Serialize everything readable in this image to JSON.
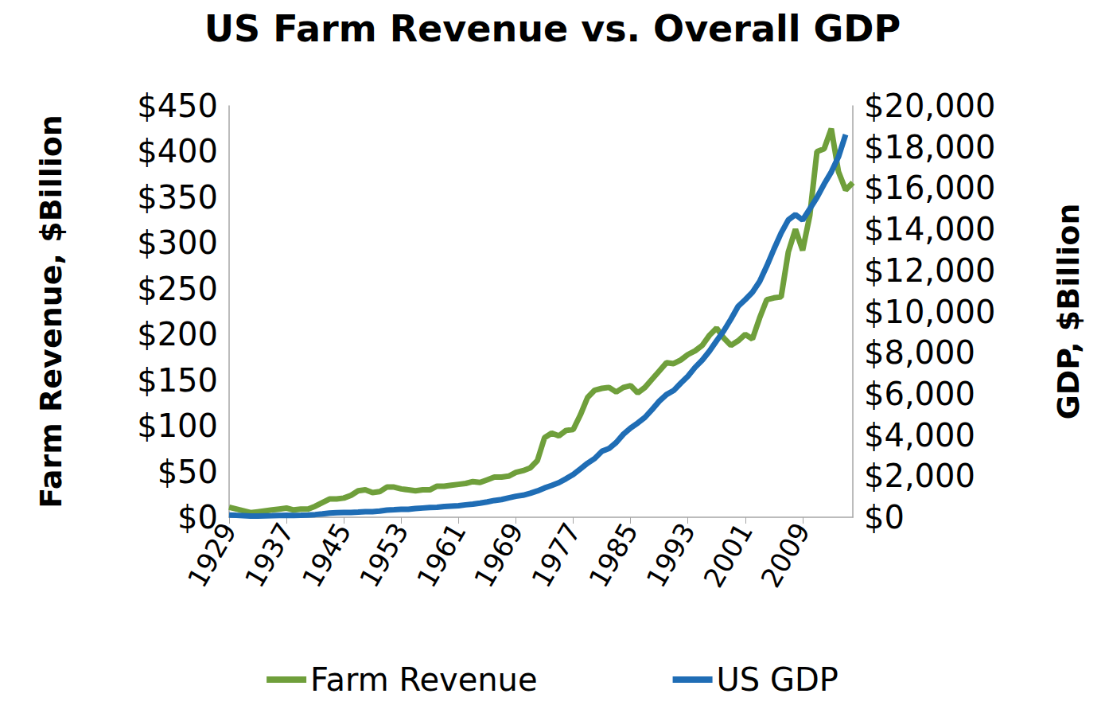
{
  "chart_data": {
    "type": "line",
    "title": "US Farm Revenue vs. Overall GDP",
    "y_label": "Farm Revenue, $Billion",
    "y2_label": "GDP, $Billion",
    "categories": [
      "1929",
      null,
      null,
      null,
      null,
      null,
      null,
      null,
      "1937",
      null,
      null,
      null,
      null,
      null,
      null,
      null,
      "1945",
      null,
      null,
      null,
      null,
      null,
      null,
      null,
      "1953",
      null,
      null,
      null,
      null,
      null,
      null,
      null,
      "1961",
      null,
      null,
      null,
      null,
      null,
      null,
      null,
      "1969",
      null,
      null,
      null,
      null,
      null,
      null,
      null,
      "1977",
      null,
      null,
      null,
      null,
      null,
      null,
      null,
      "1985",
      null,
      null,
      null,
      null,
      null,
      null,
      null,
      "1993",
      null,
      null,
      null,
      null,
      null,
      null,
      null,
      "2001",
      null,
      null,
      null,
      null,
      null,
      null,
      null,
      "2009",
      null,
      null,
      null,
      null,
      null,
      null,
      null
    ],
    "series": [
      {
        "name": "Farm Revenue",
        "color": "#6f9f3b",
        "axis": "y",
        "values": [
          11,
          9,
          7,
          5,
          6,
          7,
          8,
          9,
          10,
          8,
          9,
          9,
          12,
          16,
          20,
          20,
          21,
          24,
          29,
          30,
          27,
          28,
          33,
          33,
          31,
          30,
          29,
          30,
          30,
          34,
          34,
          35,
          36,
          37,
          39,
          38,
          41,
          44,
          44,
          45,
          49,
          51,
          54,
          62,
          87,
          92,
          89,
          95,
          96,
          112,
          131,
          139,
          141,
          142,
          137,
          142,
          144,
          136,
          142,
          151,
          160,
          169,
          168,
          172,
          178,
          182,
          188,
          199,
          207,
          196,
          188,
          193,
          200,
          195,
          218,
          238,
          240,
          241,
          290,
          315,
          292,
          330,
          400,
          403,
          425,
          378,
          358,
          366
        ]
      },
      {
        "name": "US GDP",
        "color": "#1f6db5",
        "axis": "y2",
        "values": [
          105,
          92,
          77,
          60,
          57,
          67,
          74,
          85,
          93,
          87,
          94,
          103,
          130,
          166,
          204,
          225,
          229,
          228,
          249,
          274,
          273,
          300,
          347,
          367,
          389,
          391,
          426,
          450,
          474,
          482,
          522,
          543,
          563,
          605,
          639,
          686,
          744,
          815,
          862,
          943,
          1019,
          1073,
          1165,
          1280,
          1425,
          1545,
          1684,
          1873,
          2082,
          2352,
          2627,
          2857,
          3207,
          3343,
          3634,
          4037,
          4339,
          4580,
          4855,
          5236,
          5642,
          5963,
          6158,
          6520,
          6859,
          7287,
          7640,
          8073,
          8578,
          9063,
          9631,
          10252,
          10582,
          10936,
          11458,
          12214,
          13037,
          13815,
          14452,
          14713,
          14449,
          14992,
          15543,
          16197,
          16785,
          17522,
          18600,
          null
        ]
      }
    ],
    "ylim": [
      0,
      450
    ],
    "yticks": [
      {
        "value": 0,
        "label": "$0"
      },
      {
        "value": 50,
        "label": "$50"
      },
      {
        "value": 100,
        "label": "$100"
      },
      {
        "value": 150,
        "label": "$150"
      },
      {
        "value": 200,
        "label": "$200"
      },
      {
        "value": 250,
        "label": "$250"
      },
      {
        "value": 300,
        "label": "$300"
      },
      {
        "value": 350,
        "label": "$350"
      },
      {
        "value": 400,
        "label": "$400"
      },
      {
        "value": 450,
        "label": "$450"
      }
    ],
    "y2lim": [
      0,
      20000
    ],
    "y2ticks": [
      {
        "value": 0,
        "label": "$0"
      },
      {
        "value": 2000,
        "label": "$2,000"
      },
      {
        "value": 4000,
        "label": "$4,000"
      },
      {
        "value": 6000,
        "label": "$6,000"
      },
      {
        "value": 8000,
        "label": "$8,000"
      },
      {
        "value": 10000,
        "label": "$10,000"
      },
      {
        "value": 12000,
        "label": "$12,000"
      },
      {
        "value": 14000,
        "label": "$14,000"
      },
      {
        "value": 16000,
        "label": "$16,000"
      },
      {
        "value": 18000,
        "label": "$18,000"
      },
      {
        "value": 20000,
        "label": "$20,000"
      }
    ],
    "grid": false,
    "legend": "bottom"
  }
}
